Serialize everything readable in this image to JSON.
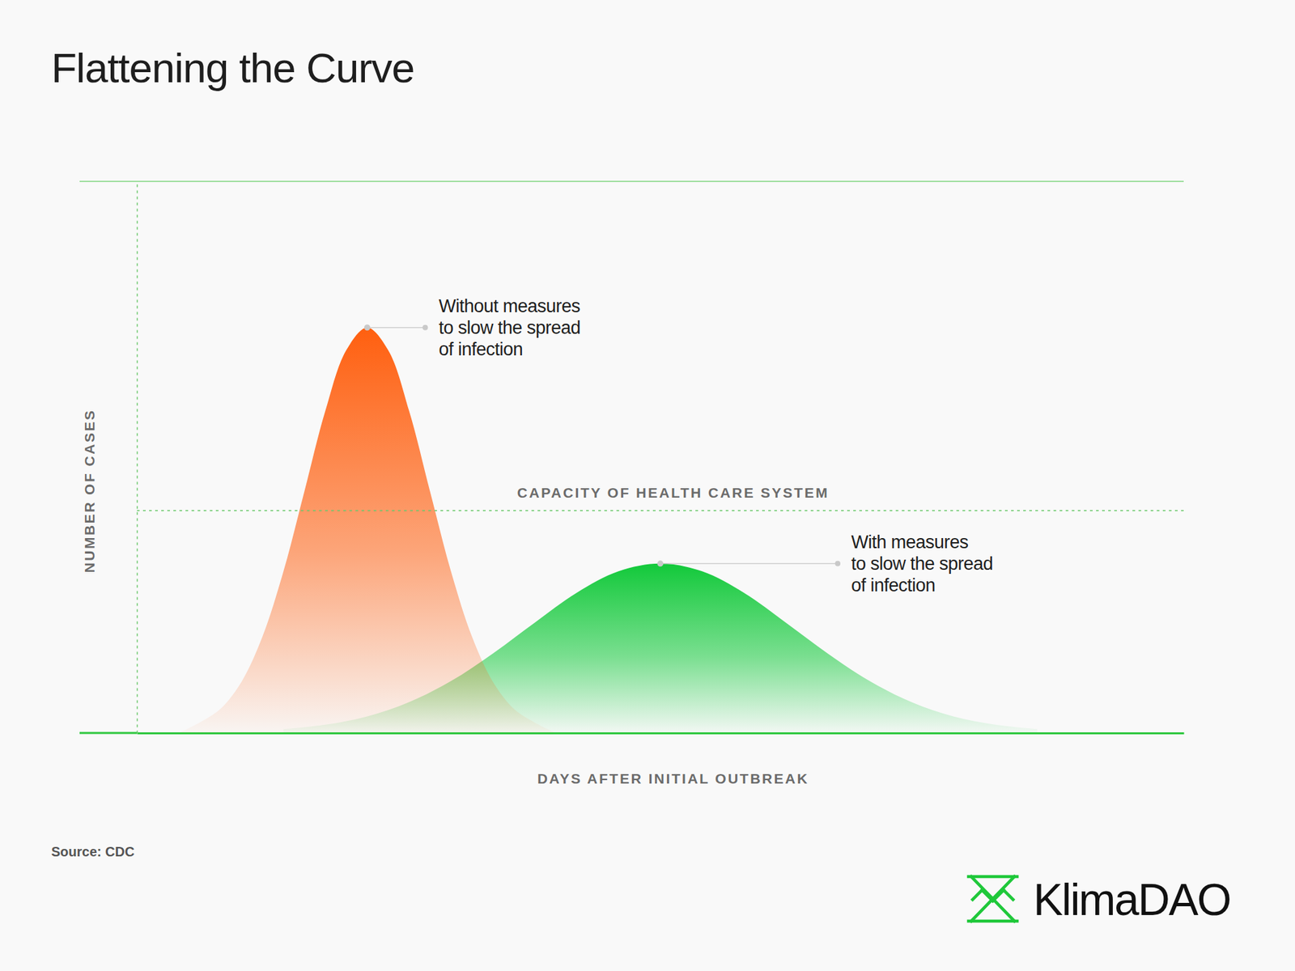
{
  "chart_data": {
    "type": "area",
    "title": "Flattening the Curve",
    "x_label": "DAYS AFTER INITIAL OUTBREAK",
    "y_label": "NUMBER OF CASES",
    "xlim": [
      0,
      100
    ],
    "ylim": [
      0,
      100
    ],
    "tick_labels": false,
    "series": [
      {
        "name": "Without measures\nto slow the spread\nof infection",
        "color": "#ff5f0f",
        "x": [
          4,
          6,
          8,
          10,
          12,
          14,
          16,
          18,
          20,
          22,
          24,
          26,
          28,
          30,
          32,
          34,
          36,
          38,
          40
        ],
        "values": [
          0,
          1.9,
          4.4,
          9.3,
          17.5,
          29.3,
          43.8,
          58.4,
          69.4,
          73.5,
          69.4,
          58.4,
          43.8,
          29.3,
          17.5,
          9.3,
          4.4,
          1.9,
          0
        ]
      },
      {
        "name": "With measures\nto slow the spread\nof infection",
        "color": "#12c93a",
        "x": [
          14,
          18,
          22,
          26,
          30,
          34,
          38,
          42,
          46,
          50,
          54,
          58,
          62,
          66,
          70,
          74,
          78,
          82,
          86
        ],
        "values": [
          0.7,
          1.5,
          3.0,
          5.6,
          9.4,
          14.4,
          20.0,
          25.4,
          29.3,
          30.7,
          29.3,
          25.4,
          20.0,
          14.4,
          9.4,
          5.6,
          3.0,
          1.5,
          0.7
        ]
      }
    ],
    "annotations": [
      {
        "text": "CAPACITY OF HEALTH CARE SYSTEM",
        "y": 40.3
      }
    ],
    "source": "Source: CDC",
    "brand": "KlimaDAO"
  }
}
